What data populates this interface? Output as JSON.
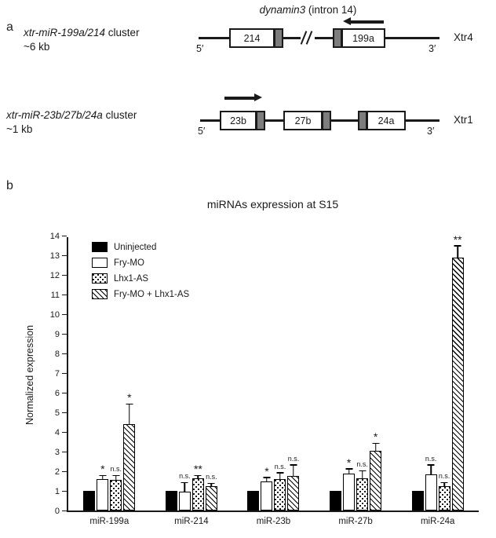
{
  "figure": {
    "panel_a_label": "a",
    "panel_b_label": "b"
  },
  "panel_a": {
    "gene_title_italic": "dynamin3",
    "gene_title_rest": " (intron 14)",
    "clusters": [
      {
        "name_italic": "xtr-miR-199a/214",
        "name_rest": " cluster",
        "size": "~6 kb",
        "five_prime": "5′",
        "three_prime": "3′",
        "chromosome": "Xtr4",
        "boxes": [
          "214",
          "199a"
        ],
        "arrow_direction": "left"
      },
      {
        "name_italic": "xtr-miR-23b/27b/24a",
        "name_rest": " cluster",
        "size": "~1 kb",
        "five_prime": "5′",
        "three_prime": "3′",
        "chromosome": "Xtr1",
        "boxes": [
          "23b",
          "27b",
          "24a"
        ],
        "arrow_direction": "right"
      }
    ]
  },
  "chart_data": {
    "type": "bar",
    "title": "miRNAs expression at S15",
    "xlabel": "",
    "ylabel": "Normalized expression",
    "ylim": [
      0,
      14
    ],
    "ytick_step": 1,
    "grid": false,
    "legend_position": "top-left-inside",
    "categories": [
      "miR-199a",
      "miR-214",
      "miR-23b",
      "miR-27b",
      "miR-24a"
    ],
    "series": [
      {
        "name": "Uninjected",
        "style": "solid-black",
        "values": [
          1,
          1,
          1,
          1,
          1
        ],
        "errors": [
          0,
          0,
          0,
          0,
          0
        ],
        "annotations": [
          "",
          "",
          "",
          "",
          ""
        ]
      },
      {
        "name": "Fry-MO",
        "style": "white",
        "values": [
          1.6,
          0.95,
          1.5,
          1.9,
          1.85
        ],
        "errors": [
          0.15,
          0.45,
          0.15,
          0.2,
          0.45
        ],
        "annotations": [
          "*",
          "n.s.",
          "*",
          "*",
          "n.s."
        ]
      },
      {
        "name": "Lhx1-AS",
        "style": "dotted",
        "values": [
          1.55,
          1.65,
          1.6,
          1.65,
          1.25
        ],
        "errors": [
          0.2,
          0.1,
          0.3,
          0.35,
          0.15
        ],
        "annotations": [
          "n.s.",
          "**",
          "n.s.",
          "n.s.",
          "n.s."
        ]
      },
      {
        "name": "Fry-MO + Lhx1-AS",
        "style": "hatched",
        "values": [
          4.4,
          1.25,
          1.75,
          3.05,
          12.9
        ],
        "errors": [
          1.0,
          0.1,
          0.55,
          0.35,
          0.55
        ],
        "annotations": [
          "*",
          "n.s.",
          "n.s.",
          "*",
          "**"
        ]
      }
    ]
  }
}
